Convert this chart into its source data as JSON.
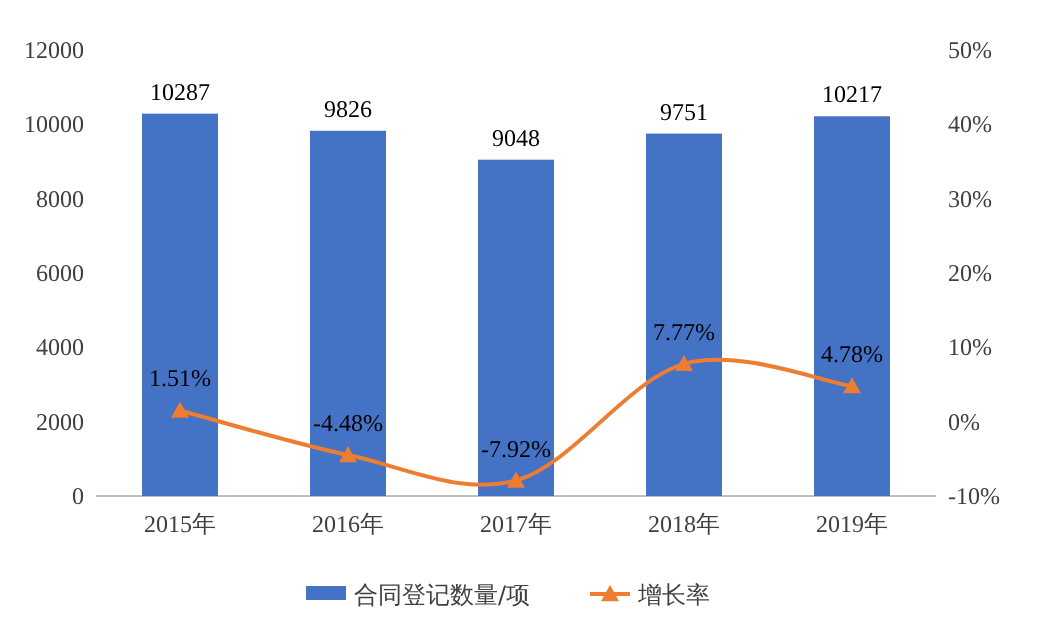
{
  "chart_data": {
    "type": "bar",
    "categories": [
      "2015年",
      "2016年",
      "2017年",
      "2018年",
      "2019年"
    ],
    "series": [
      {
        "name": "合同登记数量/项",
        "color": "#4472c4",
        "values": [
          10287,
          9826,
          9048,
          9751,
          10217
        ],
        "value_labels": [
          "10287",
          "9826",
          "9048",
          "9751",
          "10217"
        ]
      },
      {
        "name": "增长率",
        "type": "line",
        "axis": "y2",
        "color": "#ed7d31",
        "marker": "triangle",
        "values": [
          1.51,
          -4.48,
          -7.92,
          7.77,
          4.78
        ],
        "value_labels": [
          "1.51%",
          "-4.48%",
          "-7.92%",
          "7.77%",
          "4.78%"
        ]
      }
    ],
    "ylim": [
      0,
      12000
    ],
    "yticks": [
      0,
      2000,
      4000,
      6000,
      8000,
      10000,
      12000
    ],
    "y2lim": [
      -10,
      50
    ],
    "y2ticks": [
      {
        "value": -10,
        "label": "-10%"
      },
      {
        "value": 0,
        "label": "0%"
      },
      {
        "value": 10,
        "label": "10%"
      },
      {
        "value": 20,
        "label": "20%"
      },
      {
        "value": 30,
        "label": "30%"
      },
      {
        "value": 40,
        "label": "40%"
      },
      {
        "value": 50,
        "label": "50%"
      }
    ],
    "legend": "bottom"
  }
}
